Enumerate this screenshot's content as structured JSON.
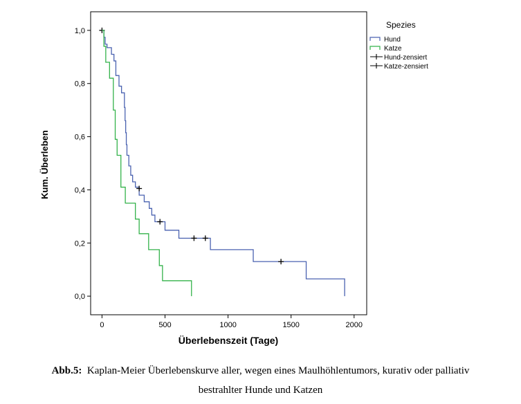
{
  "chart_data": {
    "type": "line",
    "title": "",
    "xlabel": "Überlebenszeit (Tage)",
    "ylabel": "Kum. Überleben",
    "xlim": [
      -90,
      2100
    ],
    "ylim": [
      -0.07,
      1.07
    ],
    "x_ticks": [
      0,
      500,
      1000,
      1500,
      2000
    ],
    "x_tick_labels": [
      "0",
      "500",
      "1000",
      "1500",
      "2000"
    ],
    "y_ticks": [
      0.0,
      0.2,
      0.4,
      0.6,
      0.8,
      1.0
    ],
    "y_tick_labels": [
      "0,0",
      "0,2",
      "0,4",
      "0,6",
      "0,8",
      "1,0"
    ],
    "grid": false,
    "legend": {
      "title": "Spezies",
      "placement": "right",
      "entries": [
        "Hund",
        "Katze",
        "Hund-zensiert",
        "Katze-zensiert"
      ]
    },
    "series": [
      {
        "name": "Hund",
        "color": "#4a62b0",
        "steps": [
          [
            0,
            1.0
          ],
          [
            15,
            0.974
          ],
          [
            25,
            0.948
          ],
          [
            40,
            0.935
          ],
          [
            75,
            0.91
          ],
          [
            95,
            0.885
          ],
          [
            110,
            0.83
          ],
          [
            135,
            0.79
          ],
          [
            155,
            0.765
          ],
          [
            178,
            0.71
          ],
          [
            183,
            0.66
          ],
          [
            188,
            0.615
          ],
          [
            193,
            0.57
          ],
          [
            198,
            0.53
          ],
          [
            213,
            0.49
          ],
          [
            228,
            0.455
          ],
          [
            243,
            0.43
          ],
          [
            265,
            0.41
          ],
          [
            295,
            0.38
          ],
          [
            335,
            0.355
          ],
          [
            375,
            0.33
          ],
          [
            395,
            0.305
          ],
          [
            420,
            0.28
          ],
          [
            500,
            0.248
          ],
          [
            610,
            0.218
          ],
          [
            860,
            0.175
          ],
          [
            1200,
            0.13
          ],
          [
            1620,
            0.065
          ],
          [
            1925,
            0.0
          ]
        ],
        "end_x": 1925,
        "censored": [
          [
            0,
            1.0
          ],
          [
            295,
            0.405
          ],
          [
            460,
            0.28
          ],
          [
            730,
            0.218
          ],
          [
            820,
            0.218
          ],
          [
            1420,
            0.13
          ]
        ]
      },
      {
        "name": "Katze",
        "color": "#33b24a",
        "steps": [
          [
            0,
            1.0
          ],
          [
            15,
            0.94
          ],
          [
            30,
            0.88
          ],
          [
            60,
            0.82
          ],
          [
            90,
            0.7
          ],
          [
            105,
            0.59
          ],
          [
            120,
            0.53
          ],
          [
            150,
            0.41
          ],
          [
            185,
            0.35
          ],
          [
            265,
            0.29
          ],
          [
            295,
            0.235
          ],
          [
            370,
            0.175
          ],
          [
            455,
            0.115
          ],
          [
            480,
            0.058
          ],
          [
            710,
            0.0
          ]
        ],
        "end_x": 710,
        "censored": []
      }
    ]
  },
  "caption": {
    "label": "Abb.5:",
    "text_line1": "Kaplan-Meier Überlebenskurve aller, wegen eines Maulhöhlentumors, kurativ oder palliativ",
    "text_line2": "bestrahlter Hunde und Katzen"
  }
}
